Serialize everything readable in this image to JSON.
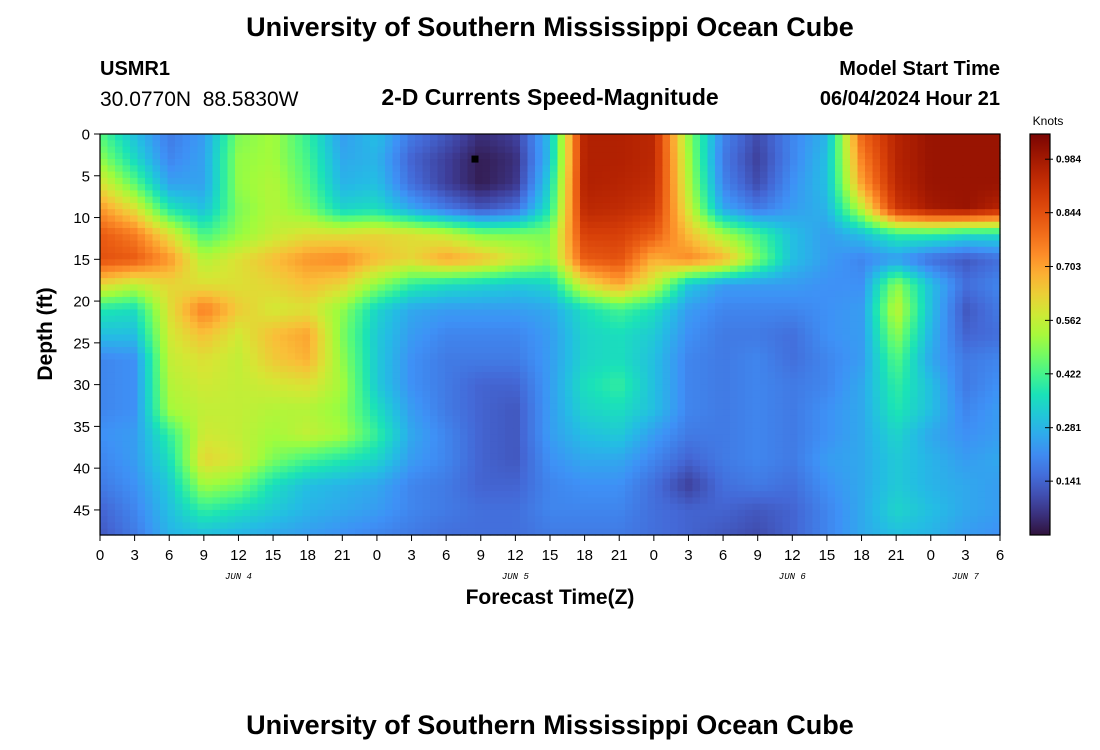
{
  "header": {
    "title": "University of Southern Mississippi Ocean Cube",
    "station_id": "USMR1",
    "coordinates": "30.0770N  88.5830W",
    "chart_title": "2-D Currents Speed-Magnitude",
    "model_label": "Model Start Time",
    "model_time": "06/04/2024 Hour 21"
  },
  "footer": {
    "title": "University of Southern Mississippi Ocean Cube"
  },
  "chart_data": {
    "type": "heatmap",
    "title": "2-D Currents Speed-Magnitude",
    "xlabel": "Forecast Time(Z)",
    "ylabel": "Depth (ft)",
    "x_start": "2024-06-04 00Z",
    "x_end": "2024-06-07 06Z",
    "xlim_hours": [
      0,
      78
    ],
    "ylim": [
      0,
      48
    ],
    "y_reversed": true,
    "x_tick_labels": [
      "0",
      "3",
      "6",
      "9",
      "12",
      "15",
      "18",
      "21",
      "0",
      "3",
      "6",
      "9",
      "12",
      "15",
      "18",
      "21",
      "0",
      "3",
      "6",
      "9",
      "12",
      "15",
      "18",
      "21",
      "0",
      "3",
      "6"
    ],
    "day_labels": [
      {
        "hour": 12,
        "label": "JUN 4"
      },
      {
        "hour": 36,
        "label": "JUN 5"
      },
      {
        "hour": 60,
        "label": "JUN 6"
      },
      {
        "hour": 75,
        "label": "JUN 7"
      }
    ],
    "y_ticks": [
      0,
      5,
      10,
      15,
      20,
      25,
      30,
      35,
      40,
      45
    ],
    "grid": false,
    "marker": {
      "hour": 32.5,
      "depth": 3
    },
    "colorbar": {
      "label": "Knots",
      "min": 0,
      "max": 1.05,
      "ticks": [
        "0.984",
        "0.844",
        "0.703",
        "0.562",
        "0.422",
        "0.281",
        "0.141"
      ],
      "colormap": "turbo"
    },
    "grid_hours": [
      0,
      3,
      6,
      9,
      12,
      15,
      18,
      21,
      24,
      27,
      30,
      33,
      36,
      39,
      42,
      45,
      48,
      51,
      54,
      57,
      60,
      63,
      66,
      69,
      72,
      75,
      78
    ],
    "grid_depths": [
      0,
      3,
      6,
      9,
      12,
      15,
      18,
      21,
      24,
      27,
      30,
      33,
      36,
      39,
      42,
      45,
      48
    ],
    "values": [
      [
        0.44,
        0.3,
        0.18,
        0.24,
        0.48,
        0.52,
        0.4,
        0.24,
        0.3,
        0.18,
        0.12,
        0.05,
        0.08,
        0.3,
        0.96,
        0.96,
        0.94,
        0.5,
        0.2,
        0.1,
        0.2,
        0.28,
        0.8,
        0.95,
        1.0,
        1.0,
        1.0
      ],
      [
        0.5,
        0.35,
        0.2,
        0.25,
        0.5,
        0.52,
        0.42,
        0.26,
        0.28,
        0.14,
        0.08,
        0.02,
        0.05,
        0.3,
        0.96,
        0.96,
        0.94,
        0.52,
        0.18,
        0.08,
        0.2,
        0.3,
        0.75,
        0.95,
        1.0,
        1.0,
        1.0
      ],
      [
        0.6,
        0.45,
        0.25,
        0.25,
        0.5,
        0.54,
        0.44,
        0.28,
        0.3,
        0.16,
        0.08,
        0.02,
        0.06,
        0.34,
        0.96,
        0.95,
        0.93,
        0.54,
        0.2,
        0.1,
        0.22,
        0.3,
        0.7,
        0.94,
        1.0,
        1.0,
        1.0
      ],
      [
        0.72,
        0.6,
        0.38,
        0.3,
        0.48,
        0.54,
        0.48,
        0.34,
        0.36,
        0.26,
        0.18,
        0.12,
        0.16,
        0.38,
        0.94,
        0.93,
        0.9,
        0.58,
        0.26,
        0.18,
        0.24,
        0.28,
        0.55,
        0.9,
        0.98,
        1.0,
        0.95
      ],
      [
        0.82,
        0.76,
        0.6,
        0.42,
        0.5,
        0.56,
        0.6,
        0.6,
        0.62,
        0.6,
        0.56,
        0.48,
        0.48,
        0.48,
        0.88,
        0.88,
        0.82,
        0.66,
        0.52,
        0.42,
        0.3,
        0.24,
        0.3,
        0.4,
        0.4,
        0.36,
        0.36
      ],
      [
        0.84,
        0.82,
        0.72,
        0.54,
        0.6,
        0.66,
        0.72,
        0.74,
        0.66,
        0.62,
        0.7,
        0.66,
        0.58,
        0.5,
        0.82,
        0.84,
        0.68,
        0.74,
        0.68,
        0.48,
        0.3,
        0.24,
        0.2,
        0.24,
        0.16,
        0.12,
        0.16
      ],
      [
        0.62,
        0.56,
        0.62,
        0.6,
        0.6,
        0.62,
        0.66,
        0.62,
        0.5,
        0.4,
        0.36,
        0.34,
        0.32,
        0.34,
        0.6,
        0.7,
        0.56,
        0.32,
        0.24,
        0.24,
        0.24,
        0.22,
        0.22,
        0.5,
        0.3,
        0.16,
        0.2
      ],
      [
        0.38,
        0.36,
        0.6,
        0.76,
        0.64,
        0.58,
        0.6,
        0.5,
        0.34,
        0.26,
        0.24,
        0.24,
        0.24,
        0.26,
        0.36,
        0.42,
        0.36,
        0.24,
        0.2,
        0.2,
        0.2,
        0.22,
        0.24,
        0.56,
        0.3,
        0.12,
        0.18
      ],
      [
        0.3,
        0.3,
        0.58,
        0.66,
        0.58,
        0.66,
        0.7,
        0.48,
        0.32,
        0.24,
        0.2,
        0.2,
        0.2,
        0.24,
        0.34,
        0.36,
        0.32,
        0.22,
        0.18,
        0.18,
        0.16,
        0.22,
        0.24,
        0.5,
        0.28,
        0.14,
        0.16
      ],
      [
        0.2,
        0.22,
        0.56,
        0.6,
        0.56,
        0.64,
        0.68,
        0.5,
        0.32,
        0.22,
        0.18,
        0.18,
        0.18,
        0.24,
        0.34,
        0.36,
        0.3,
        0.2,
        0.18,
        0.2,
        0.16,
        0.2,
        0.24,
        0.44,
        0.26,
        0.18,
        0.2
      ],
      [
        0.2,
        0.22,
        0.54,
        0.58,
        0.56,
        0.58,
        0.6,
        0.52,
        0.32,
        0.22,
        0.18,
        0.14,
        0.14,
        0.24,
        0.36,
        0.4,
        0.3,
        0.2,
        0.18,
        0.2,
        0.18,
        0.2,
        0.26,
        0.4,
        0.3,
        0.18,
        0.22
      ],
      [
        0.2,
        0.22,
        0.52,
        0.56,
        0.56,
        0.54,
        0.54,
        0.5,
        0.36,
        0.24,
        0.18,
        0.14,
        0.12,
        0.24,
        0.34,
        0.36,
        0.3,
        0.2,
        0.18,
        0.2,
        0.18,
        0.22,
        0.26,
        0.38,
        0.3,
        0.2,
        0.24
      ],
      [
        0.22,
        0.24,
        0.4,
        0.58,
        0.56,
        0.52,
        0.56,
        0.52,
        0.4,
        0.26,
        0.2,
        0.14,
        0.12,
        0.24,
        0.3,
        0.32,
        0.24,
        0.18,
        0.18,
        0.2,
        0.18,
        0.22,
        0.26,
        0.34,
        0.26,
        0.22,
        0.24
      ],
      [
        0.2,
        0.24,
        0.36,
        0.62,
        0.58,
        0.48,
        0.42,
        0.38,
        0.34,
        0.24,
        0.2,
        0.14,
        0.12,
        0.22,
        0.26,
        0.26,
        0.2,
        0.14,
        0.18,
        0.2,
        0.18,
        0.24,
        0.26,
        0.32,
        0.28,
        0.24,
        0.26
      ],
      [
        0.18,
        0.22,
        0.32,
        0.52,
        0.48,
        0.36,
        0.3,
        0.28,
        0.26,
        0.2,
        0.18,
        0.14,
        0.14,
        0.2,
        0.22,
        0.22,
        0.16,
        0.08,
        0.16,
        0.18,
        0.16,
        0.22,
        0.26,
        0.32,
        0.28,
        0.26,
        0.24
      ],
      [
        0.14,
        0.2,
        0.3,
        0.4,
        0.36,
        0.32,
        0.28,
        0.26,
        0.24,
        0.2,
        0.18,
        0.16,
        0.16,
        0.2,
        0.2,
        0.2,
        0.16,
        0.14,
        0.14,
        0.12,
        0.14,
        0.2,
        0.26,
        0.34,
        0.3,
        0.26,
        0.24
      ],
      [
        0.12,
        0.18,
        0.28,
        0.3,
        0.28,
        0.26,
        0.24,
        0.22,
        0.2,
        0.18,
        0.16,
        0.16,
        0.16,
        0.18,
        0.18,
        0.18,
        0.16,
        0.14,
        0.12,
        0.1,
        0.14,
        0.2,
        0.26,
        0.3,
        0.28,
        0.24,
        0.22
      ]
    ]
  }
}
